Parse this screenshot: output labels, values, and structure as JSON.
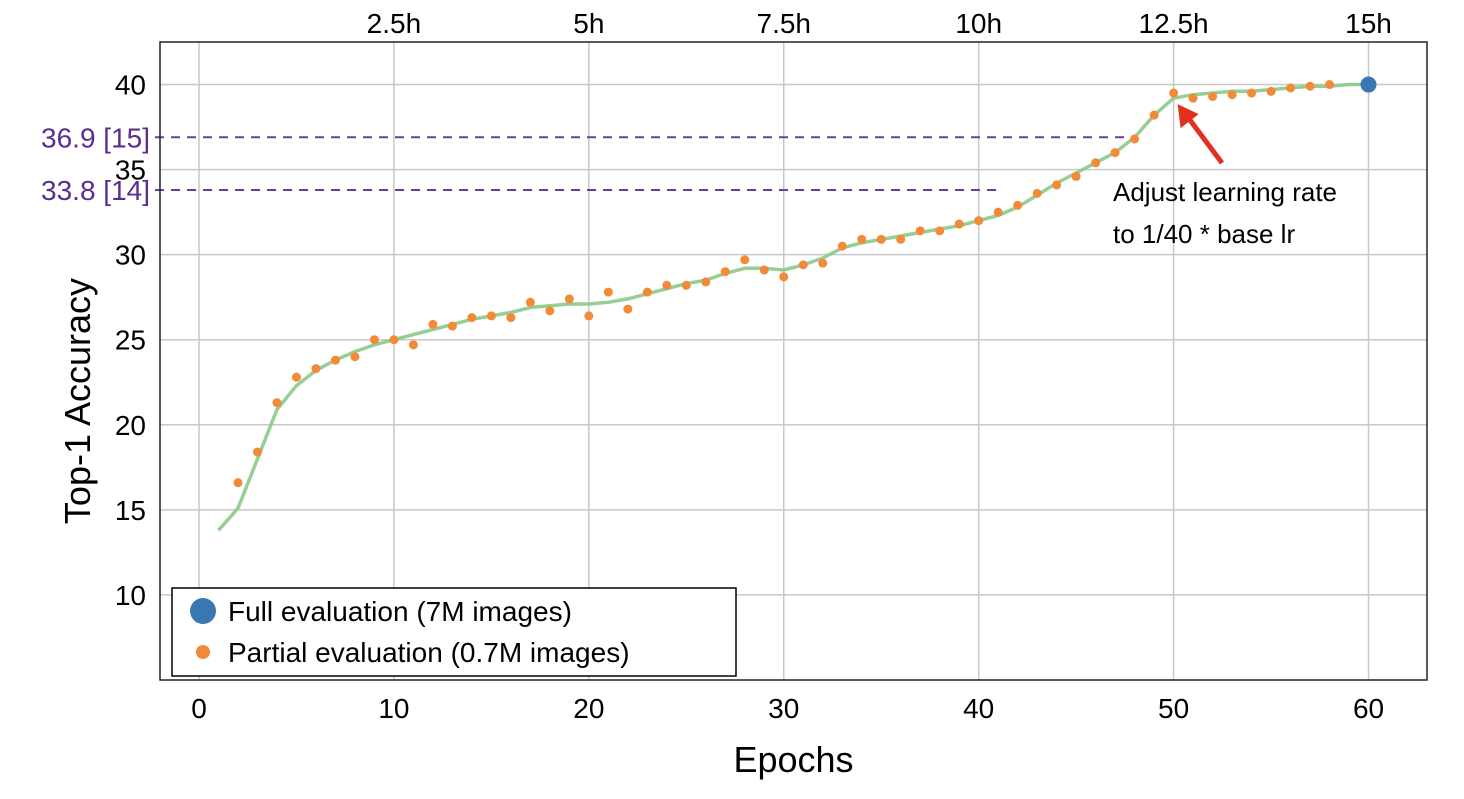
{
  "chart_data": {
    "type": "scatter",
    "xlabel": "Epochs",
    "ylabel": "Top-1 Accuracy",
    "xlim": [
      -2,
      63
    ],
    "ylim": [
      5,
      42.5
    ],
    "x_ticks": [
      0,
      10,
      20,
      30,
      40,
      50,
      60
    ],
    "y_ticks": [
      10,
      15,
      20,
      25,
      30,
      35,
      40
    ],
    "top_axis_ticks": [
      {
        "x": 10,
        "label": "2.5h"
      },
      {
        "x": 20,
        "label": "5h"
      },
      {
        "x": 30,
        "label": "7.5h"
      },
      {
        "x": 40,
        "label": "10h"
      },
      {
        "x": 50,
        "label": "12.5h"
      },
      {
        "x": 60,
        "label": "15h"
      }
    ],
    "grid": true,
    "reference_lines": [
      {
        "y": 36.9,
        "label": "36.9 [15]",
        "x_end": 48,
        "color": "#6a3d9a"
      },
      {
        "y": 33.8,
        "label": "33.8 [14]",
        "x_end": 41,
        "color": "#6a3d9a"
      }
    ],
    "annotation": {
      "lines": [
        "Adjust learning rate",
        "to 1/40 * base lr"
      ],
      "arrow_to": {
        "x": 50,
        "y": 39.2
      },
      "arrow_color": "#e0301e"
    },
    "legend": {
      "position": "lower-left",
      "entries": [
        {
          "label": "Full evaluation (7M images)",
          "color": "#3a78b2",
          "marker": "large-dot"
        },
        {
          "label": "Partial evaluation (0.7M images)",
          "color": "#f28a38",
          "marker": "dot"
        }
      ]
    },
    "series": [
      {
        "name": "Full evaluation (7M images)",
        "color": "#3a78b2",
        "points": [
          [
            60,
            40.0
          ]
        ]
      },
      {
        "name": "Partial evaluation (0.7M images)",
        "color": "#f28a38",
        "points": [
          [
            2,
            16.6
          ],
          [
            3,
            18.4
          ],
          [
            4,
            21.3
          ],
          [
            5,
            22.8
          ],
          [
            6,
            23.3
          ],
          [
            7,
            23.8
          ],
          [
            8,
            24.0
          ],
          [
            9,
            25.0
          ],
          [
            10,
            25.0
          ],
          [
            11,
            24.7
          ],
          [
            12,
            25.9
          ],
          [
            13,
            25.8
          ],
          [
            14,
            26.3
          ],
          [
            15,
            26.4
          ],
          [
            16,
            26.3
          ],
          [
            17,
            27.2
          ],
          [
            18,
            26.7
          ],
          [
            19,
            27.4
          ],
          [
            20,
            26.4
          ],
          [
            21,
            27.8
          ],
          [
            22,
            26.8
          ],
          [
            23,
            27.8
          ],
          [
            24,
            28.2
          ],
          [
            25,
            28.2
          ],
          [
            26,
            28.4
          ],
          [
            27,
            29.0
          ],
          [
            28,
            29.7
          ],
          [
            29,
            29.1
          ],
          [
            30,
            28.7
          ],
          [
            31,
            29.4
          ],
          [
            32,
            29.5
          ],
          [
            33,
            30.5
          ],
          [
            34,
            30.9
          ],
          [
            35,
            30.9
          ],
          [
            36,
            30.9
          ],
          [
            37,
            31.4
          ],
          [
            38,
            31.4
          ],
          [
            39,
            31.8
          ],
          [
            40,
            32.0
          ],
          [
            41,
            32.5
          ],
          [
            42,
            32.9
          ],
          [
            43,
            33.6
          ],
          [
            44,
            34.1
          ],
          [
            45,
            34.6
          ],
          [
            46,
            35.4
          ],
          [
            47,
            36.0
          ],
          [
            48,
            36.8
          ],
          [
            49,
            38.2
          ],
          [
            50,
            39.5
          ],
          [
            51,
            39.2
          ],
          [
            52,
            39.3
          ],
          [
            53,
            39.4
          ],
          [
            54,
            39.5
          ],
          [
            55,
            39.6
          ],
          [
            56,
            39.8
          ],
          [
            57,
            39.9
          ],
          [
            58,
            40.0
          ]
        ]
      },
      {
        "name": "trend",
        "color": "#8bc98b",
        "style": "line",
        "points": [
          [
            1,
            13.8
          ],
          [
            2,
            15.1
          ],
          [
            3,
            18.0
          ],
          [
            4,
            20.9
          ],
          [
            5,
            22.3
          ],
          [
            6,
            23.2
          ],
          [
            7,
            23.8
          ],
          [
            8,
            24.3
          ],
          [
            9,
            24.7
          ],
          [
            10,
            25.0
          ],
          [
            11,
            25.3
          ],
          [
            12,
            25.6
          ],
          [
            13,
            25.9
          ],
          [
            14,
            26.2
          ],
          [
            15,
            26.4
          ],
          [
            16,
            26.6
          ],
          [
            17,
            26.9
          ],
          [
            18,
            27.0
          ],
          [
            19,
            27.1
          ],
          [
            20,
            27.1
          ],
          [
            21,
            27.2
          ],
          [
            22,
            27.4
          ],
          [
            23,
            27.7
          ],
          [
            24,
            28.0
          ],
          [
            25,
            28.3
          ],
          [
            26,
            28.5
          ],
          [
            27,
            28.9
          ],
          [
            28,
            29.2
          ],
          [
            29,
            29.2
          ],
          [
            30,
            29.1
          ],
          [
            31,
            29.4
          ],
          [
            32,
            29.8
          ],
          [
            33,
            30.4
          ],
          [
            34,
            30.7
          ],
          [
            35,
            30.9
          ],
          [
            36,
            31.1
          ],
          [
            37,
            31.3
          ],
          [
            38,
            31.5
          ],
          [
            39,
            31.7
          ],
          [
            40,
            32.0
          ],
          [
            41,
            32.3
          ],
          [
            42,
            32.8
          ],
          [
            43,
            33.5
          ],
          [
            44,
            34.2
          ],
          [
            45,
            34.8
          ],
          [
            46,
            35.4
          ],
          [
            47,
            36.0
          ],
          [
            48,
            36.9
          ],
          [
            49,
            38.2
          ],
          [
            50,
            39.2
          ],
          [
            51,
            39.4
          ],
          [
            52,
            39.5
          ],
          [
            53,
            39.6
          ],
          [
            54,
            39.6
          ],
          [
            55,
            39.7
          ],
          [
            56,
            39.8
          ],
          [
            57,
            39.9
          ],
          [
            58,
            39.9
          ],
          [
            59,
            40.0
          ],
          [
            60,
            40.0
          ]
        ]
      }
    ]
  }
}
